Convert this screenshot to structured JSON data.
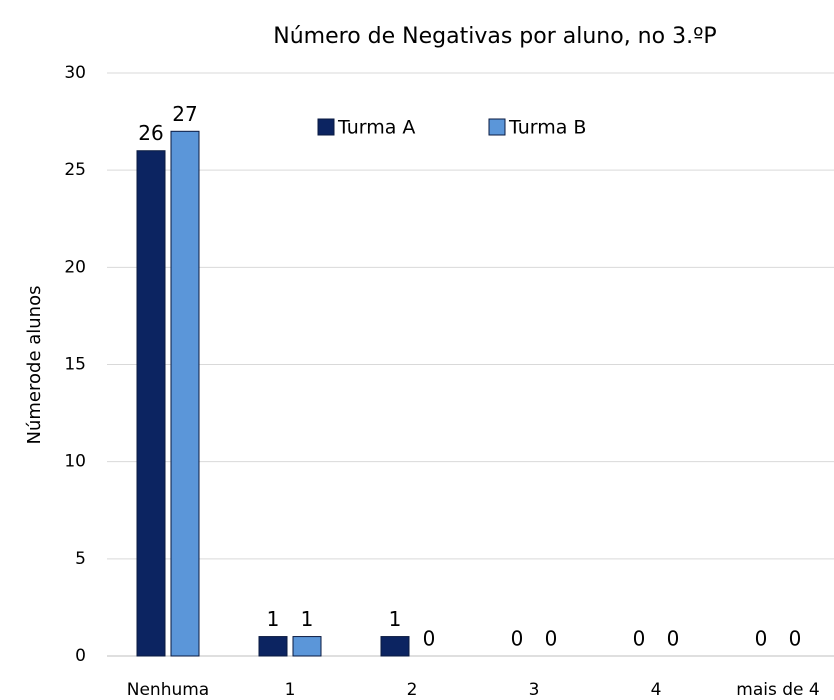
{
  "chart_data": {
    "type": "bar",
    "title": "Número de Negativas por aluno, no 3.ºP",
    "y_label": "Númerode alunos",
    "categories": [
      "Nenhuma",
      "1",
      "2",
      "3",
      "4",
      "mais de 4"
    ],
    "series": [
      {
        "name": "Turma A",
        "color": "#0c2461",
        "values": [
          26,
          1,
          1,
          0,
          0,
          0
        ]
      },
      {
        "name": "Turma B",
        "color": "#5b96d9",
        "values": [
          27,
          1,
          0,
          0,
          0,
          0
        ]
      }
    ],
    "ylim": [
      0,
      30
    ],
    "yticks": [
      0,
      5,
      10,
      15,
      20,
      25,
      30
    ],
    "grid": true,
    "legend": "top"
  }
}
